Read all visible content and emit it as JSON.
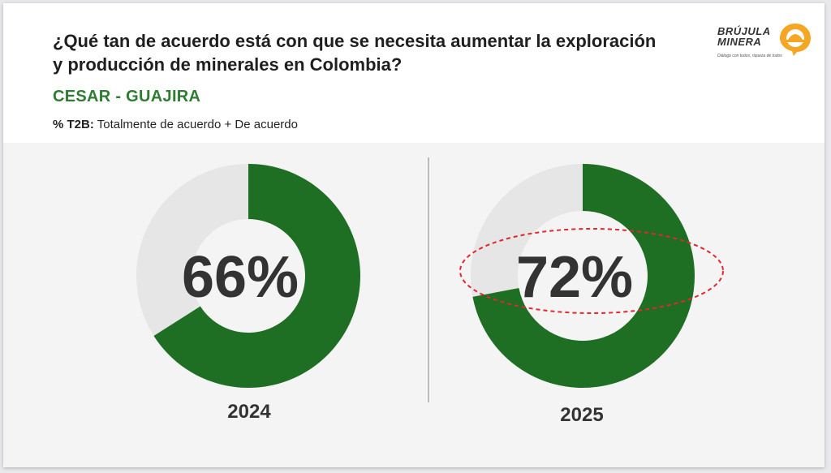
{
  "title": "¿Qué tan de acuerdo está con que se necesita aumentar la exploración y producción de minerales en Colombia?",
  "region": "CESAR - GUAJIRA",
  "metric_code": "% T2B:",
  "metric_desc": " Totalmente de acuerdo + De acuerdo",
  "logo": {
    "line1": "BRÚJULA",
    "line2": "MINERA",
    "tagline": "Diálogo con todos, riqueza de todos",
    "icon": "compass-helmet-icon"
  },
  "colors": {
    "accent": "#1e6e24",
    "track": "#e6e6e6",
    "highlight": "#e0282e",
    "label": "#333333"
  },
  "chart_data": [
    {
      "type": "pie",
      "variant": "donut",
      "category": "2024",
      "value": 66,
      "label": "66%",
      "ylim": [
        0,
        100
      ],
      "highlighted": false
    },
    {
      "type": "pie",
      "variant": "donut",
      "category": "2025",
      "value": 72,
      "label": "72%",
      "ylim": [
        0,
        100
      ],
      "highlighted": true
    }
  ]
}
